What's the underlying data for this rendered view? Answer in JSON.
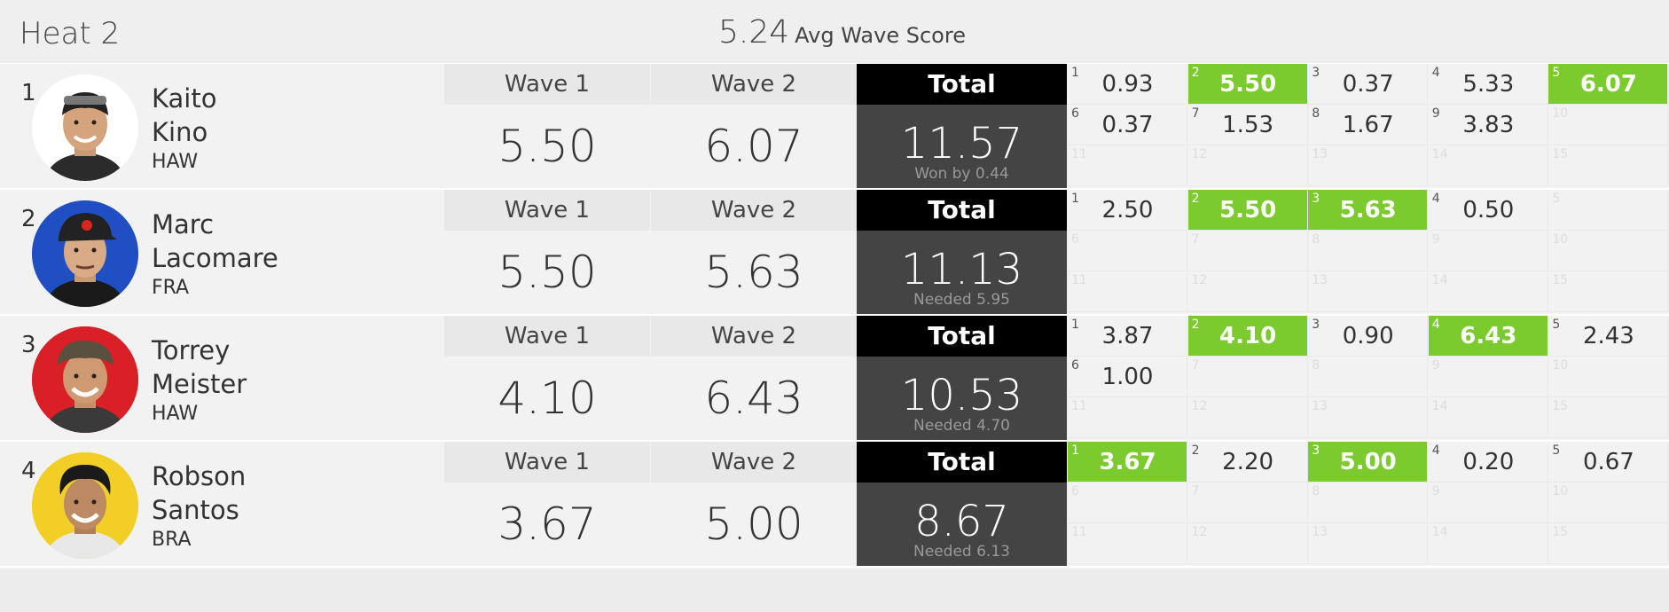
{
  "heat": {
    "title": "Heat 2",
    "avg_score": "5.24",
    "avg_label": "Avg Wave Score",
    "wave1_label": "Wave 1",
    "wave2_label": "Wave 2",
    "total_label": "Total"
  },
  "surfers": [
    {
      "rank": "1",
      "first": "Kaito",
      "last": "Kino",
      "country": "HAW",
      "avatar_bg": "#ffffff",
      "wave1": "5.50",
      "wave2": "6.07",
      "total": "11.57",
      "status": "Won by 0.44",
      "waves": [
        {
          "n": "1",
          "s": "0.93",
          "best": false
        },
        {
          "n": "2",
          "s": "5.50",
          "best": true
        },
        {
          "n": "3",
          "s": "0.37",
          "best": false
        },
        {
          "n": "4",
          "s": "5.33",
          "best": false
        },
        {
          "n": "5",
          "s": "6.07",
          "best": true
        },
        {
          "n": "6",
          "s": "0.37",
          "best": false
        },
        {
          "n": "7",
          "s": "1.53",
          "best": false
        },
        {
          "n": "8",
          "s": "1.67",
          "best": false
        },
        {
          "n": "9",
          "s": "3.83",
          "best": false
        },
        {
          "n": "10",
          "s": "",
          "best": false
        },
        {
          "n": "11",
          "s": "",
          "best": false
        },
        {
          "n": "12",
          "s": "",
          "best": false
        },
        {
          "n": "13",
          "s": "",
          "best": false
        },
        {
          "n": "14",
          "s": "",
          "best": false
        },
        {
          "n": "15",
          "s": "",
          "best": false
        }
      ]
    },
    {
      "rank": "2",
      "first": "Marc",
      "last": "Lacomare",
      "country": "FRA",
      "avatar_bg": "#1f4fc2",
      "wave1": "5.50",
      "wave2": "5.63",
      "total": "11.13",
      "status": "Needed 5.95",
      "waves": [
        {
          "n": "1",
          "s": "2.50",
          "best": false
        },
        {
          "n": "2",
          "s": "5.50",
          "best": true
        },
        {
          "n": "3",
          "s": "5.63",
          "best": true
        },
        {
          "n": "4",
          "s": "0.50",
          "best": false
        },
        {
          "n": "5",
          "s": "",
          "best": false
        },
        {
          "n": "6",
          "s": "",
          "best": false
        },
        {
          "n": "7",
          "s": "",
          "best": false
        },
        {
          "n": "8",
          "s": "",
          "best": false
        },
        {
          "n": "9",
          "s": "",
          "best": false
        },
        {
          "n": "10",
          "s": "",
          "best": false
        },
        {
          "n": "11",
          "s": "",
          "best": false
        },
        {
          "n": "12",
          "s": "",
          "best": false
        },
        {
          "n": "13",
          "s": "",
          "best": false
        },
        {
          "n": "14",
          "s": "",
          "best": false
        },
        {
          "n": "15",
          "s": "",
          "best": false
        }
      ]
    },
    {
      "rank": "3",
      "first": "Torrey",
      "last": "Meister",
      "country": "HAW",
      "avatar_bg": "#d92027",
      "wave1": "4.10",
      "wave2": "6.43",
      "total": "10.53",
      "status": "Needed 4.70",
      "waves": [
        {
          "n": "1",
          "s": "3.87",
          "best": false
        },
        {
          "n": "2",
          "s": "4.10",
          "best": true
        },
        {
          "n": "3",
          "s": "0.90",
          "best": false
        },
        {
          "n": "4",
          "s": "6.43",
          "best": true
        },
        {
          "n": "5",
          "s": "2.43",
          "best": false
        },
        {
          "n": "6",
          "s": "1.00",
          "best": false
        },
        {
          "n": "7",
          "s": "",
          "best": false
        },
        {
          "n": "8",
          "s": "",
          "best": false
        },
        {
          "n": "9",
          "s": "",
          "best": false
        },
        {
          "n": "10",
          "s": "",
          "best": false
        },
        {
          "n": "11",
          "s": "",
          "best": false
        },
        {
          "n": "12",
          "s": "",
          "best": false
        },
        {
          "n": "13",
          "s": "",
          "best": false
        },
        {
          "n": "14",
          "s": "",
          "best": false
        },
        {
          "n": "15",
          "s": "",
          "best": false
        }
      ]
    },
    {
      "rank": "4",
      "first": "Robson",
      "last": "Santos",
      "country": "BRA",
      "avatar_bg": "#f2cf26",
      "wave1": "3.67",
      "wave2": "5.00",
      "total": "8.67",
      "status": "Needed 6.13",
      "waves": [
        {
          "n": "1",
          "s": "3.67",
          "best": true
        },
        {
          "n": "2",
          "s": "2.20",
          "best": false
        },
        {
          "n": "3",
          "s": "5.00",
          "best": true
        },
        {
          "n": "4",
          "s": "0.20",
          "best": false
        },
        {
          "n": "5",
          "s": "0.67",
          "best": false
        },
        {
          "n": "6",
          "s": "",
          "best": false
        },
        {
          "n": "7",
          "s": "",
          "best": false
        },
        {
          "n": "8",
          "s": "",
          "best": false
        },
        {
          "n": "9",
          "s": "",
          "best": false
        },
        {
          "n": "10",
          "s": "",
          "best": false
        },
        {
          "n": "11",
          "s": "",
          "best": false
        },
        {
          "n": "12",
          "s": "",
          "best": false
        },
        {
          "n": "13",
          "s": "",
          "best": false
        },
        {
          "n": "14",
          "s": "",
          "best": false
        },
        {
          "n": "15",
          "s": "",
          "best": false
        }
      ]
    }
  ]
}
